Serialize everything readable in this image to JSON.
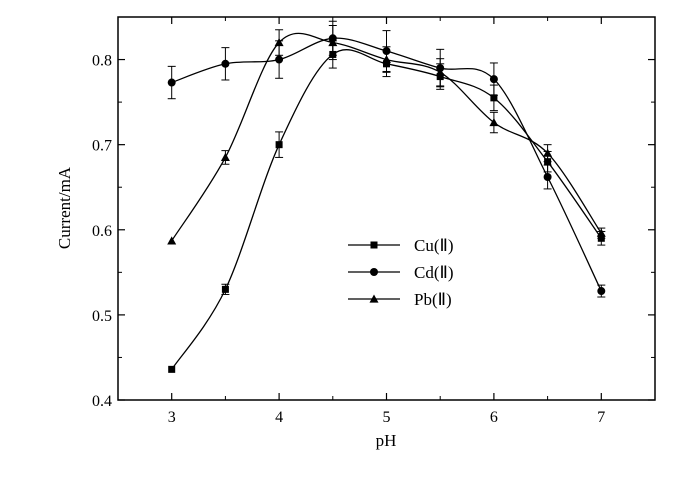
{
  "chart_data": {
    "type": "line",
    "xlabel": "pH",
    "ylabel": "Current/mA",
    "xlim": [
      2.5,
      7.5
    ],
    "ylim": [
      0.4,
      0.85
    ],
    "xticks": [
      3,
      4,
      5,
      6,
      7
    ],
    "yticks": [
      0.4,
      0.5,
      0.6,
      0.7,
      0.8
    ],
    "grid": false,
    "legend_position": "center-right",
    "x": [
      3,
      3.5,
      4,
      4.5,
      5,
      5.5,
      6,
      6.5,
      7
    ],
    "series": [
      {
        "name": "Cu(Ⅱ)",
        "marker": "square",
        "values": [
          0.436,
          0.53,
          0.7,
          0.806,
          0.795,
          0.78,
          0.755,
          0.68,
          0.59
        ],
        "errors": [
          0.0,
          0.006,
          0.015,
          0.016,
          0.015,
          0.015,
          0.015,
          0.012,
          0.008
        ]
      },
      {
        "name": "Cd(Ⅱ)",
        "marker": "circle",
        "values": [
          0.773,
          0.795,
          0.8,
          0.825,
          0.81,
          0.79,
          0.777,
          0.662,
          0.528
        ],
        "errors": [
          0.019,
          0.019,
          0.022,
          0.02,
          0.024,
          0.022,
          0.019,
          0.014,
          0.007
        ]
      },
      {
        "name": "Pb(Ⅱ)",
        "marker": "triangle",
        "values": [
          0.587,
          0.685,
          0.82,
          0.82,
          0.8,
          0.785,
          0.726,
          0.69,
          0.596
        ],
        "errors": [
          0.0,
          0.008,
          0.015,
          0.02,
          0.015,
          0.016,
          0.012,
          0.01,
          0.006
        ]
      }
    ]
  }
}
